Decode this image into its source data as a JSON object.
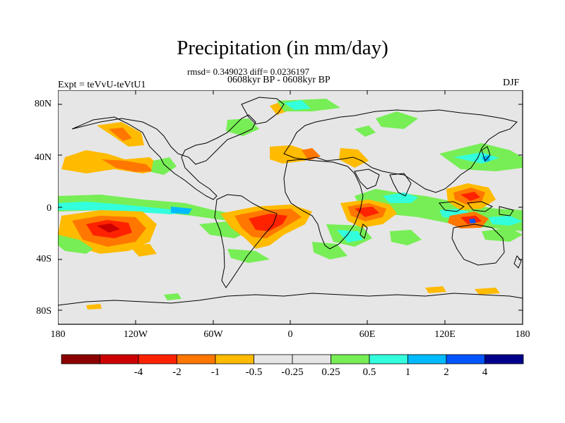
{
  "title": "Precipitation (in mm/day)",
  "stats": "rmsd= 0.349023 diff= 0.0236197",
  "period": "0608kyr BP - 0608kyr BP",
  "experiment": "Expt = teVvU-teVtU1",
  "season": "DJF",
  "lat_labels": [
    "80N",
    "40N",
    "0",
    "40S",
    "80S"
  ],
  "lon_labels": [
    "180",
    "120W",
    "60W",
    "0",
    "60E",
    "120E",
    "180"
  ],
  "colorbar": {
    "colors": [
      "#8b0000",
      "#cc0000",
      "#ff2200",
      "#ff7700",
      "#ffbb00",
      "#e6e6e6",
      "#e6e6e6",
      "#77ee55",
      "#33ffdd",
      "#00bbff",
      "#0055ff",
      "#00008b"
    ],
    "labels": [
      "-4",
      "-2",
      "-1",
      "-0.5",
      "-0.25",
      "0.25",
      "0.5",
      "1",
      "2",
      "4"
    ]
  },
  "map_colors": {
    "background": "#e6e6e6",
    "coast": "#000000"
  }
}
